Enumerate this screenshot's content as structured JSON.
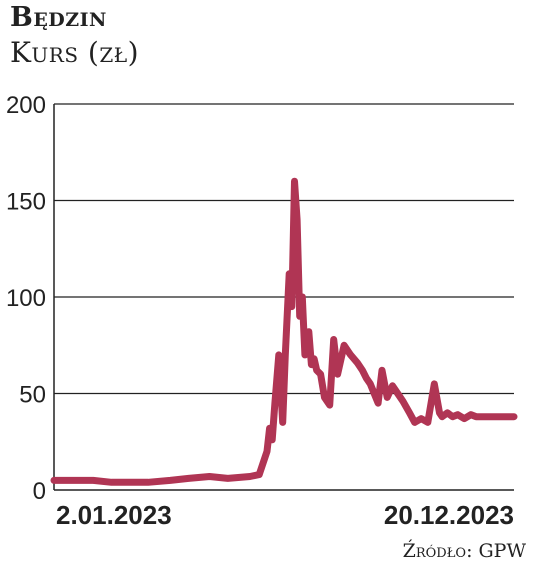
{
  "header": {
    "title": "Będzin",
    "subtitle": "Kurs (zł)"
  },
  "source": "Źródło: GPW",
  "colors": {
    "line": "#b03554",
    "grid": "#222222"
  },
  "chart_data": {
    "type": "line",
    "title": "Będzin",
    "ylabel": "Kurs (zł)",
    "xlabel": "",
    "ylim": [
      0,
      200
    ],
    "yticks": [
      "0",
      "50",
      "100",
      "150",
      "200"
    ],
    "xtick_labels": [
      "2.01.2023",
      "20.12.2023"
    ],
    "grid": true,
    "series": [
      {
        "x": [
          "2023-01-02",
          "2023-01-16",
          "2023-02-01",
          "2023-02-15",
          "2023-03-01",
          "2023-03-15",
          "2023-04-01",
          "2023-04-15",
          "2023-05-01",
          "2023-05-15",
          "2023-06-01",
          "2023-06-08",
          "2023-06-14",
          "2023-06-16",
          "2023-06-18",
          "2023-06-20",
          "2023-06-23",
          "2023-06-26",
          "2023-06-28",
          "2023-07-01",
          "2023-07-03",
          "2023-07-05",
          "2023-07-07",
          "2023-07-09",
          "2023-07-11",
          "2023-07-13",
          "2023-07-16",
          "2023-07-18",
          "2023-07-20",
          "2023-07-22",
          "2023-07-25",
          "2023-07-28",
          "2023-08-01",
          "2023-08-04",
          "2023-08-07",
          "2023-08-12",
          "2023-08-17",
          "2023-08-22",
          "2023-08-26",
          "2023-08-29",
          "2023-09-01",
          "2023-09-04",
          "2023-09-07",
          "2023-09-10",
          "2023-09-14",
          "2023-09-18",
          "2023-09-22",
          "2023-09-26",
          "2023-10-01",
          "2023-10-05",
          "2023-10-10",
          "2023-10-15",
          "2023-10-20",
          "2023-10-24",
          "2023-10-26",
          "2023-10-30",
          "2023-11-03",
          "2023-11-07",
          "2023-11-12",
          "2023-11-17",
          "2023-11-21",
          "2023-11-23",
          "2023-11-25",
          "2023-11-28",
          "2023-12-01",
          "2023-12-04",
          "2023-12-07",
          "2023-12-10",
          "2023-12-13",
          "2023-12-16",
          "2023-12-20"
        ],
        "values": [
          5,
          5,
          5,
          4,
          4,
          4,
          5,
          6,
          7,
          6,
          7,
          8,
          20,
          32,
          26,
          45,
          70,
          35,
          70,
          112,
          95,
          160,
          140,
          90,
          100,
          70,
          82,
          65,
          68,
          62,
          60,
          48,
          44,
          78,
          60,
          75,
          70,
          66,
          62,
          58,
          55,
          50,
          45,
          62,
          48,
          54,
          50,
          46,
          40,
          35,
          37,
          35,
          55,
          40,
          38,
          40,
          38,
          39,
          37,
          39,
          38,
          38,
          38,
          38,
          38,
          38,
          38,
          38,
          38,
          38,
          38
        ]
      }
    ]
  }
}
